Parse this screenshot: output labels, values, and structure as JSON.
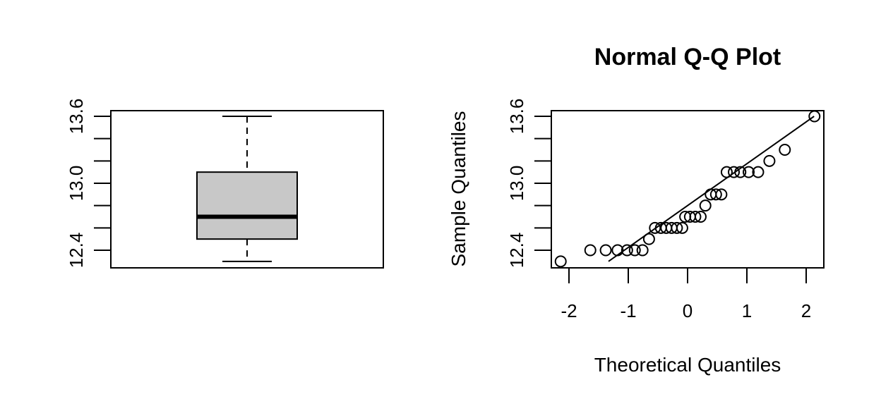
{
  "chart_data": [
    {
      "type": "boxplot",
      "title": "",
      "xlabel": "",
      "ylabel": "",
      "ylim": [
        12.3,
        13.6
      ],
      "y_ticks": [
        12.4,
        12.6,
        12.8,
        13.0,
        13.2,
        13.4,
        13.6
      ],
      "y_tick_labels": [
        "12.4",
        "",
        "",
        "13.0",
        "",
        "",
        "13.6"
      ],
      "box": {
        "min": 12.3,
        "q1": 12.5,
        "median": 12.7,
        "q3": 13.1,
        "max": 13.6
      },
      "box_fill": "#c8c8c8",
      "grid": false
    },
    {
      "type": "scatter",
      "title": "Normal Q-Q Plot",
      "xlabel": "Theoretical Quantiles",
      "ylabel": "Sample Quantiles",
      "xlim": [
        -2.2,
        2.3
      ],
      "ylim": [
        12.3,
        13.6
      ],
      "x_ticks": [
        -2,
        -1,
        0,
        1,
        2
      ],
      "x_tick_labels": [
        "-2",
        "-1",
        "0",
        "1",
        "2"
      ],
      "y_ticks": [
        12.4,
        12.6,
        12.8,
        13.0,
        13.2,
        13.4,
        13.6
      ],
      "y_tick_labels": [
        "12.4",
        "",
        "",
        "13.0",
        "",
        "",
        "13.6"
      ],
      "points": [
        {
          "x": -2.14,
          "y": 12.3
        },
        {
          "x": -1.64,
          "y": 12.4
        },
        {
          "x": -1.38,
          "y": 12.4
        },
        {
          "x": -1.18,
          "y": 12.4
        },
        {
          "x": -1.02,
          "y": 12.4
        },
        {
          "x": -0.89,
          "y": 12.4
        },
        {
          "x": -0.76,
          "y": 12.4
        },
        {
          "x": -0.65,
          "y": 12.5
        },
        {
          "x": -0.55,
          "y": 12.6
        },
        {
          "x": -0.45,
          "y": 12.6
        },
        {
          "x": -0.36,
          "y": 12.6
        },
        {
          "x": -0.27,
          "y": 12.6
        },
        {
          "x": -0.18,
          "y": 12.6
        },
        {
          "x": -0.09,
          "y": 12.6
        },
        {
          "x": -0.04,
          "y": 12.7
        },
        {
          "x": 0.04,
          "y": 12.7
        },
        {
          "x": 0.13,
          "y": 12.7
        },
        {
          "x": 0.22,
          "y": 12.7
        },
        {
          "x": 0.3,
          "y": 12.8
        },
        {
          "x": 0.39,
          "y": 12.9
        },
        {
          "x": 0.48,
          "y": 12.9
        },
        {
          "x": 0.57,
          "y": 12.9
        },
        {
          "x": 0.66,
          "y": 13.1
        },
        {
          "x": 0.78,
          "y": 13.1
        },
        {
          "x": 0.89,
          "y": 13.1
        },
        {
          "x": 1.03,
          "y": 13.1
        },
        {
          "x": 1.19,
          "y": 13.1
        },
        {
          "x": 1.38,
          "y": 13.2
        },
        {
          "x": 1.64,
          "y": 13.3
        },
        {
          "x": 2.14,
          "y": 13.6
        }
      ],
      "reference_line": {
        "intercept": 12.8,
        "slope": 0.375
      },
      "grid": false
    }
  ]
}
